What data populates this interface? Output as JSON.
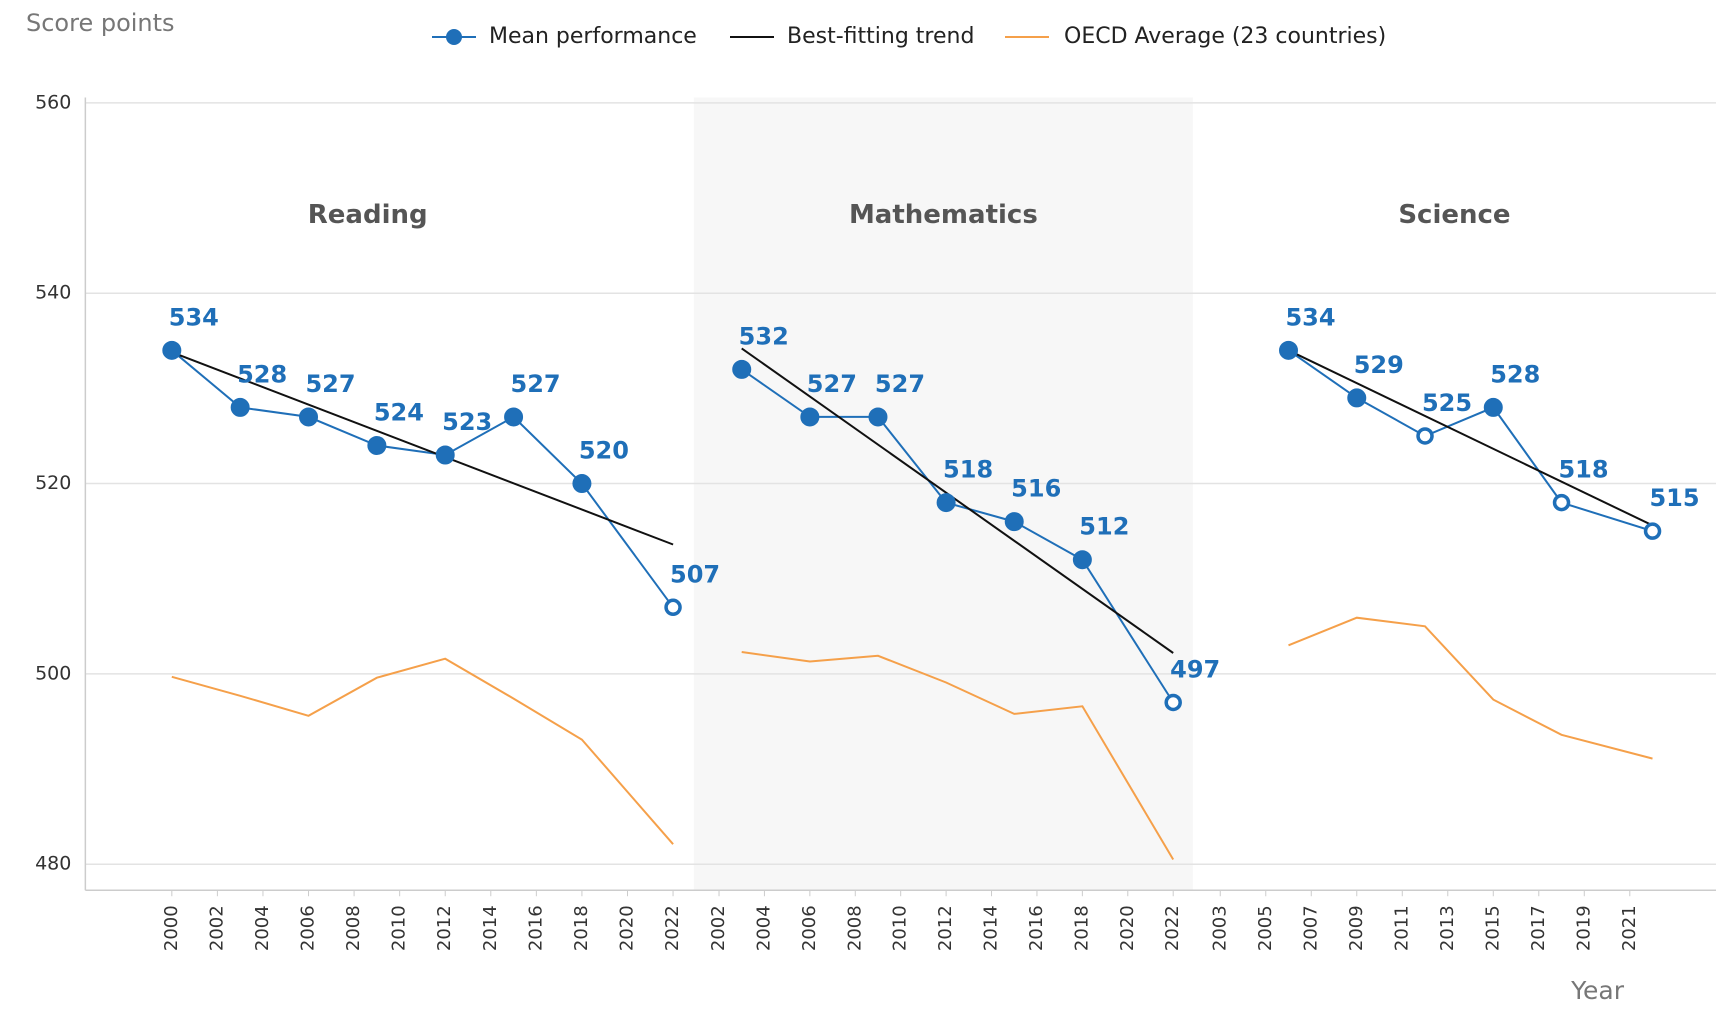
{
  "chart_data": {
    "type": "line",
    "y_axis_label": "Score points",
    "x_axis_label": "Year",
    "ylim": [
      480,
      560
    ],
    "yticks": [
      480,
      500,
      520,
      540,
      560
    ],
    "grid": true,
    "legend_position": "top",
    "series": [
      {
        "name": "Mean performance",
        "color": "#1f6fb8"
      },
      {
        "name": "Best-fitting trend",
        "color": "#111111"
      },
      {
        "name": "OECD Average (23 countries)",
        "color": "#f5a04a"
      }
    ],
    "panels": [
      {
        "title": "Reading",
        "shaded": false,
        "xlim": [
          2000,
          2022
        ],
        "xticks": [
          2000,
          2002,
          2004,
          2006,
          2008,
          2010,
          2012,
          2014,
          2016,
          2018,
          2020,
          2022
        ],
        "x": [
          2000,
          2003,
          2006,
          2009,
          2012,
          2015,
          2018,
          2022
        ],
        "mean": [
          534,
          528,
          527,
          524,
          523,
          527,
          520,
          507
        ],
        "markers": [
          "filled",
          "filled",
          "filled",
          "filled",
          "filled",
          "filled",
          "filled",
          "hollow"
        ],
        "trend_x": [
          2000,
          2022
        ],
        "trend": [
          533.8,
          513.6
        ],
        "oecd": [
          499.7,
          497.7,
          495.6,
          499.6,
          501.6,
          497.4,
          493.1,
          482.1
        ]
      },
      {
        "title": "Mathematics",
        "shaded": true,
        "xlim": [
          2002,
          2022
        ],
        "xticks": [
          2002,
          2004,
          2006,
          2008,
          2010,
          2012,
          2014,
          2016,
          2018,
          2020,
          2022
        ],
        "x": [
          2003,
          2006,
          2009,
          2012,
          2015,
          2018,
          2022
        ],
        "mean": [
          532,
          527,
          527,
          518,
          516,
          512,
          497
        ],
        "markers": [
          "filled",
          "filled",
          "filled",
          "filled",
          "filled",
          "filled",
          "hollow"
        ],
        "trend_x": [
          2003,
          2022
        ],
        "trend": [
          534.2,
          502.2
        ],
        "oecd": [
          502.3,
          501.3,
          501.9,
          499.1,
          495.8,
          496.6,
          480.5
        ]
      },
      {
        "title": "Science",
        "shaded": false,
        "xlim": [
          2003,
          2022
        ],
        "xticks": [
          2003,
          2005,
          2007,
          2009,
          2011,
          2013,
          2015,
          2017,
          2019,
          2021
        ],
        "x": [
          2006,
          2009,
          2012,
          2015,
          2018,
          2022
        ],
        "mean": [
          534,
          529,
          525,
          528,
          518,
          515
        ],
        "markers": [
          "filled",
          "filled",
          "hollow",
          "filled",
          "hollow",
          "hollow"
        ],
        "trend_x": [
          2006,
          2022
        ],
        "trend": [
          534,
          515.6
        ],
        "oecd": [
          503,
          505.9,
          505,
          497.3,
          493.6,
          491.1
        ]
      }
    ]
  }
}
